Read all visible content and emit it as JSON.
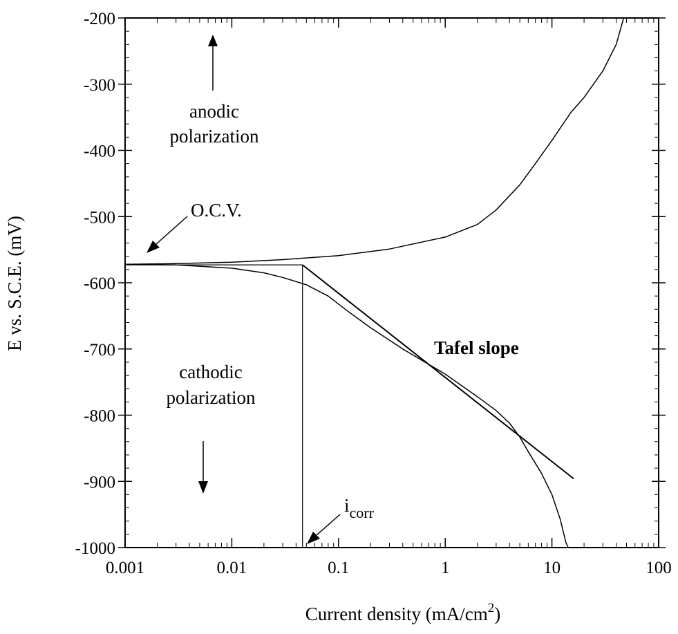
{
  "chart_data": {
    "type": "line",
    "title": "",
    "xlabel": "Current density (mA/cm",
    "xlabel_sup": "2",
    "xlabel_end": ")",
    "ylabel": "E vs. S.C.E. (mV)",
    "x_scale": "log",
    "xlim": [
      0.001,
      100
    ],
    "ylim": [
      -1000,
      -200
    ],
    "x_ticks": [
      0.001,
      0.01,
      0.1,
      1,
      10,
      100
    ],
    "x_tick_labels": [
      "0.001",
      "0.01",
      "0.1",
      "1",
      "10",
      "100"
    ],
    "y_ticks": [
      -1000,
      -900,
      -800,
      -700,
      -600,
      -500,
      -400,
      -300,
      -200
    ],
    "y_tick_labels": [
      "-1000",
      "-900",
      "-800",
      "-700",
      "-600",
      "-500",
      "-400",
      "-300",
      "-200"
    ],
    "grid": false,
    "series": [
      {
        "role": "anodic",
        "x": [
          0.001,
          0.003,
          0.01,
          0.03,
          0.1,
          0.3,
          1,
          2,
          3,
          5,
          7,
          10,
          15,
          20,
          30,
          40,
          47
        ],
        "y": [
          -572,
          -571,
          -569,
          -565,
          -559,
          -549,
          -531,
          -512,
          -490,
          -452,
          -420,
          -385,
          -343,
          -320,
          -280,
          -240,
          -200
        ]
      },
      {
        "role": "cathodic",
        "x": [
          0.001,
          0.003,
          0.01,
          0.02,
          0.03,
          0.05,
          0.08,
          0.12,
          0.2,
          0.4,
          1,
          2,
          3,
          4,
          5,
          6,
          8,
          10,
          12,
          13.5,
          14.2
        ],
        "y": [
          -572,
          -573,
          -578,
          -585,
          -592,
          -603,
          -620,
          -642,
          -668,
          -700,
          -738,
          -772,
          -793,
          -812,
          -833,
          -855,
          -888,
          -920,
          -958,
          -992,
          -1000
        ]
      },
      {
        "role": "tafel-line",
        "x": [
          0.046,
          16
        ],
        "y": [
          -573,
          -896
        ]
      },
      {
        "role": "ocv-horizontal",
        "x": [
          0.001,
          0.046
        ],
        "y": [
          -573,
          -573
        ]
      },
      {
        "role": "icorr-vertical",
        "x": [
          0.046,
          0.046
        ],
        "y": [
          -573,
          -1000
        ]
      }
    ],
    "annotations": {
      "anodic_line1": "anodic",
      "anodic_line2": "polarization",
      "ocv": "O.C.V.",
      "cathodic_line1": "cathodic",
      "cathodic_line2": "polarization",
      "tafel": "Tafel slope",
      "icorr_main": "i",
      "icorr_sub": "corr"
    }
  }
}
